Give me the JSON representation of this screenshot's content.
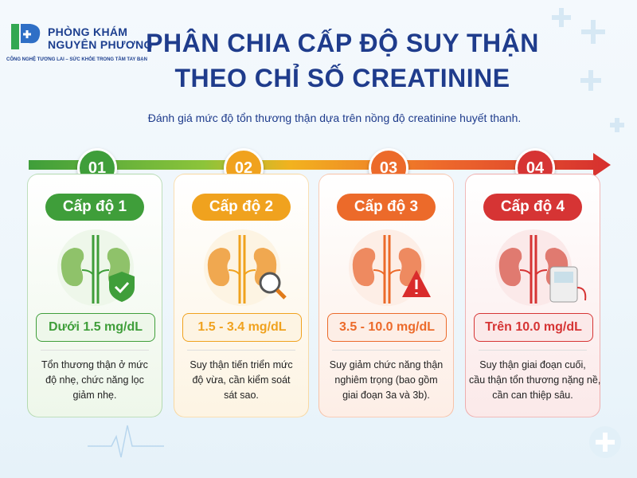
{
  "header": {
    "logo_line1": "PHÒNG KHÁM",
    "logo_line2": "NGUYÊN PHƯƠNG",
    "tagline": "CÔNG NGHỆ TƯƠNG LAI – SỨC KHỎE TRONG TẦM TAY BẠN",
    "title_line1": "PHÂN CHIA CẤP ĐỘ SUY THẬN",
    "title_line2": "THEO CHỈ SỐ CREATININE",
    "subtitle": "Đánh giá mức độ tổn thương thận dựa trên nồng độ creatinine huyết thanh."
  },
  "cards": [
    {
      "number": "01",
      "level": "Cấp độ 1",
      "value": "Dưới 1.5 mg/dL",
      "description": [
        "Tổn thương thận ở mức",
        "độ nhẹ, chức năng lọc",
        "giảm nhẹ."
      ]
    },
    {
      "number": "02",
      "level": "Cấp độ 2",
      "value": "1.5 - 3.4 mg/dL",
      "description": [
        "Suy thận tiến triển mức",
        "độ vừa, cần kiểm soát",
        "sát sao."
      ]
    },
    {
      "number": "03",
      "level": "Cấp độ 3",
      "value": "3.5 - 10.0 mg/dL",
      "description": [
        "Suy giảm chức năng thận",
        "nghiêm trọng (bao gồm",
        "giai đoạn 3a và 3b)."
      ]
    },
    {
      "number": "04",
      "level": "Cấp độ 4",
      "value": "Trên 10.0 mg/dL",
      "description": [
        "Suy thận giai đoạn cuối,",
        "cầu thận tổn thương nặng nề,",
        "cần can thiệp sâu."
      ]
    }
  ]
}
